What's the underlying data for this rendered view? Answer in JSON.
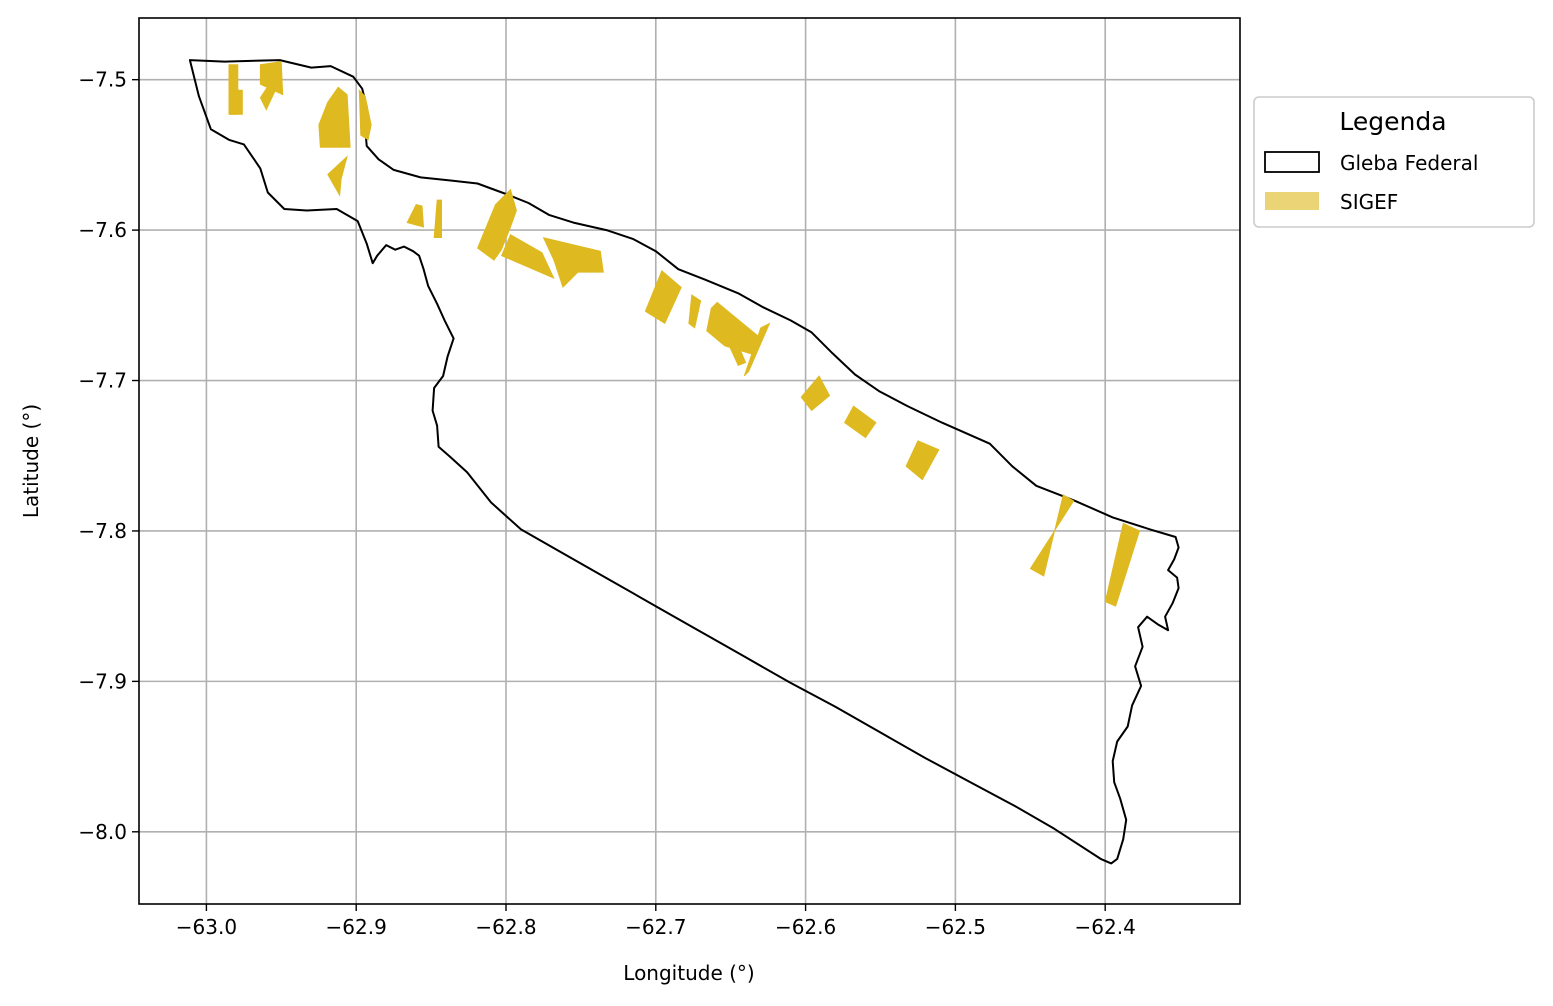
{
  "map": {
    "x_axis": {
      "label": "Longitude (°)",
      "ticks": [
        -63.0,
        -62.9,
        -62.8,
        -62.7,
        -62.6,
        -62.5,
        -62.4
      ],
      "tick_labels": [
        "−63.0",
        "−62.9",
        "−62.8",
        "−62.7",
        "−62.6",
        "−62.5",
        "−62.4"
      ],
      "range": [
        -63.045,
        -62.31
      ]
    },
    "y_axis": {
      "label": "Latitude (°)",
      "ticks": [
        -7.5,
        -7.6,
        -7.7,
        -7.8,
        -7.9,
        -8.0
      ],
      "tick_labels": [
        "−7.5",
        "−7.6",
        "−7.7",
        "−7.8",
        "−7.9",
        "−8.0"
      ],
      "range": [
        -8.048,
        -7.459
      ]
    },
    "grid": true,
    "legend": {
      "title": "Legenda",
      "placement": "outside-right-top",
      "entries": [
        {
          "label": "Gleba Federal",
          "style": "outline",
          "color": "#000000"
        },
        {
          "label": "SIGEF",
          "style": "fill",
          "color": "#dfb920"
        }
      ]
    },
    "colors": {
      "gleba_stroke": "#000000",
      "sigef_fill": "#dfb920",
      "grid": "#b0b0b0"
    },
    "gleba_federal": [
      [
        -63.011,
        -7.487
      ],
      [
        -62.988,
        -7.488
      ],
      [
        -62.951,
        -7.487
      ],
      [
        -62.93,
        -7.492
      ],
      [
        -62.917,
        -7.491
      ],
      [
        -62.902,
        -7.498
      ],
      [
        -62.896,
        -7.506
      ],
      [
        -62.893,
        -7.518
      ],
      [
        -62.894,
        -7.532
      ],
      [
        -62.893,
        -7.544
      ],
      [
        -62.885,
        -7.553
      ],
      [
        -62.875,
        -7.56
      ],
      [
        -62.857,
        -7.565
      ],
      [
        -62.837,
        -7.567
      ],
      [
        -62.819,
        -7.569
      ],
      [
        -62.8,
        -7.576
      ],
      [
        -62.785,
        -7.582
      ],
      [
        -62.771,
        -7.59
      ],
      [
        -62.755,
        -7.595
      ],
      [
        -62.733,
        -7.6
      ],
      [
        -62.715,
        -7.606
      ],
      [
        -62.7,
        -7.614
      ],
      [
        -62.685,
        -7.626
      ],
      [
        -62.667,
        -7.633
      ],
      [
        -62.645,
        -7.642
      ],
      [
        -62.629,
        -7.651
      ],
      [
        -62.61,
        -7.66
      ],
      [
        -62.596,
        -7.668
      ],
      [
        -62.582,
        -7.682
      ],
      [
        -62.567,
        -7.696
      ],
      [
        -62.551,
        -7.707
      ],
      [
        -62.532,
        -7.717
      ],
      [
        -62.509,
        -7.728
      ],
      [
        -62.477,
        -7.742
      ],
      [
        -62.462,
        -7.757
      ],
      [
        -62.446,
        -7.77
      ],
      [
        -62.42,
        -7.78
      ],
      [
        -62.395,
        -7.791
      ],
      [
        -62.37,
        -7.799
      ],
      [
        -62.353,
        -7.804
      ],
      [
        -62.351,
        -7.811
      ],
      [
        -62.354,
        -7.819
      ],
      [
        -62.358,
        -7.826
      ],
      [
        -62.352,
        -7.831
      ],
      [
        -62.351,
        -7.838
      ],
      [
        -62.355,
        -7.848
      ],
      [
        -62.36,
        -7.857
      ],
      [
        -62.358,
        -7.866
      ],
      [
        -62.365,
        -7.862
      ],
      [
        -62.372,
        -7.857
      ],
      [
        -62.378,
        -7.864
      ],
      [
        -62.375,
        -7.877
      ],
      [
        -62.38,
        -7.89
      ],
      [
        -62.376,
        -7.903
      ],
      [
        -62.382,
        -7.916
      ],
      [
        -62.385,
        -7.93
      ],
      [
        -62.392,
        -7.94
      ],
      [
        -62.395,
        -7.953
      ],
      [
        -62.394,
        -7.967
      ],
      [
        -62.39,
        -7.978
      ],
      [
        -62.386,
        -7.992
      ],
      [
        -62.388,
        -8.005
      ],
      [
        -62.392,
        -8.018
      ],
      [
        -62.396,
        -8.021
      ],
      [
        -62.403,
        -8.018
      ],
      [
        -62.434,
        -7.998
      ],
      [
        -62.46,
        -7.983
      ],
      [
        -62.49,
        -7.967
      ],
      [
        -62.52,
        -7.951
      ],
      [
        -62.55,
        -7.934
      ],
      [
        -62.58,
        -7.917
      ],
      [
        -62.61,
        -7.901
      ],
      [
        -62.64,
        -7.884
      ],
      [
        -62.67,
        -7.867
      ],
      [
        -62.7,
        -7.85
      ],
      [
        -62.73,
        -7.833
      ],
      [
        -62.76,
        -7.816
      ],
      [
        -62.79,
        -7.799
      ],
      [
        -62.81,
        -7.781
      ],
      [
        -62.826,
        -7.761
      ],
      [
        -62.837,
        -7.751
      ],
      [
        -62.845,
        -7.744
      ],
      [
        -62.846,
        -7.73
      ],
      [
        -62.849,
        -7.72
      ],
      [
        -62.848,
        -7.705
      ],
      [
        -62.842,
        -7.697
      ],
      [
        -62.839,
        -7.684
      ],
      [
        -62.835,
        -7.672
      ],
      [
        -62.841,
        -7.66
      ],
      [
        -62.846,
        -7.649
      ],
      [
        -62.852,
        -7.637
      ],
      [
        -62.855,
        -7.626
      ],
      [
        -62.858,
        -7.617
      ],
      [
        -62.862,
        -7.614
      ],
      [
        -62.868,
        -7.611
      ],
      [
        -62.874,
        -7.613
      ],
      [
        -62.88,
        -7.61
      ],
      [
        -62.886,
        -7.617
      ],
      [
        -62.889,
        -7.622
      ],
      [
        -62.893,
        -7.609
      ],
      [
        -62.899,
        -7.594
      ],
      [
        -62.913,
        -7.586
      ],
      [
        -62.933,
        -7.587
      ],
      [
        -62.948,
        -7.586
      ],
      [
        -62.959,
        -7.575
      ],
      [
        -62.964,
        -7.559
      ],
      [
        -62.975,
        -7.543
      ],
      [
        -62.985,
        -7.54
      ],
      [
        -62.997,
        -7.533
      ],
      [
        -63.005,
        -7.511
      ],
      [
        -63.011,
        -7.487
      ]
    ],
    "sigef_parcels": [
      [
        [
          -62.985,
          -7.49
        ],
        [
          -62.979,
          -7.49
        ],
        [
          -62.979,
          -7.523
        ],
        [
          -62.985,
          -7.523
        ]
      ],
      [
        [
          -62.984,
          -7.507
        ],
        [
          -62.976,
          -7.507
        ],
        [
          -62.976,
          -7.523
        ],
        [
          -62.984,
          -7.523
        ]
      ],
      [
        [
          -62.964,
          -7.49
        ],
        [
          -62.95,
          -7.488
        ],
        [
          -62.949,
          -7.51
        ],
        [
          -62.964,
          -7.503
        ]
      ],
      [
        [
          -62.958,
          -7.503
        ],
        [
          -62.952,
          -7.503
        ],
        [
          -62.96,
          -7.52
        ],
        [
          -62.964,
          -7.512
        ]
      ],
      [
        [
          -62.912,
          -7.505
        ],
        [
          -62.906,
          -7.51
        ],
        [
          -62.904,
          -7.545
        ],
        [
          -62.924,
          -7.545
        ],
        [
          -62.925,
          -7.53
        ],
        [
          -62.919,
          -7.515
        ]
      ],
      [
        [
          -62.898,
          -7.507
        ],
        [
          -62.894,
          -7.511
        ],
        [
          -62.89,
          -7.53
        ],
        [
          -62.892,
          -7.54
        ],
        [
          -62.897,
          -7.537
        ]
      ],
      [
        [
          -62.906,
          -7.551
        ],
        [
          -62.919,
          -7.563
        ],
        [
          -62.911,
          -7.577
        ],
        [
          -62.91,
          -7.566
        ]
      ],
      [
        [
          -62.86,
          -7.583
        ],
        [
          -62.856,
          -7.584
        ],
        [
          -62.855,
          -7.598
        ],
        [
          -62.866,
          -7.595
        ]
      ],
      [
        [
          -62.846,
          -7.58
        ],
        [
          -62.843,
          -7.58
        ],
        [
          -62.843,
          -7.605
        ],
        [
          -62.848,
          -7.605
        ]
      ],
      [
        [
          -62.807,
          -7.583
        ],
        [
          -62.797,
          -7.573
        ],
        [
          -62.793,
          -7.587
        ],
        [
          -62.797,
          -7.598
        ],
        [
          -62.803,
          -7.613
        ],
        [
          -62.808,
          -7.62
        ],
        [
          -62.819,
          -7.612
        ]
      ],
      [
        [
          -62.797,
          -7.603
        ],
        [
          -62.776,
          -7.615
        ],
        [
          -62.768,
          -7.632
        ],
        [
          -62.803,
          -7.617
        ]
      ],
      [
        [
          -62.775,
          -7.605
        ],
        [
          -62.737,
          -7.614
        ],
        [
          -62.735,
          -7.628
        ],
        [
          -62.752,
          -7.628
        ],
        [
          -62.762,
          -7.638
        ],
        [
          -62.768,
          -7.62
        ]
      ],
      [
        [
          -62.696,
          -7.627
        ],
        [
          -62.683,
          -7.638
        ],
        [
          -62.694,
          -7.662
        ],
        [
          -62.707,
          -7.654
        ]
      ],
      [
        [
          -62.676,
          -7.643
        ],
        [
          -62.67,
          -7.647
        ],
        [
          -62.674,
          -7.665
        ],
        [
          -62.678,
          -7.662
        ]
      ],
      [
        [
          -62.659,
          -7.648
        ],
        [
          -62.631,
          -7.671
        ],
        [
          -62.634,
          -7.683
        ],
        [
          -62.654,
          -7.677
        ],
        [
          -62.666,
          -7.667
        ],
        [
          -62.663,
          -7.652
        ]
      ],
      [
        [
          -62.652,
          -7.66
        ],
        [
          -62.64,
          -7.688
        ],
        [
          -62.645,
          -7.69
        ],
        [
          -62.656,
          -7.666
        ]
      ],
      [
        [
          -62.624,
          -7.662
        ],
        [
          -62.63,
          -7.665
        ],
        [
          -62.641,
          -7.697
        ],
        [
          -62.638,
          -7.694
        ]
      ],
      [
        [
          -62.591,
          -7.697
        ],
        [
          -62.584,
          -7.71
        ],
        [
          -62.596,
          -7.72
        ],
        [
          -62.603,
          -7.711
        ]
      ],
      [
        [
          -62.568,
          -7.717
        ],
        [
          -62.553,
          -7.728
        ],
        [
          -62.56,
          -7.738
        ],
        [
          -62.574,
          -7.728
        ]
      ],
      [
        [
          -62.525,
          -7.74
        ],
        [
          -62.511,
          -7.746
        ],
        [
          -62.522,
          -7.766
        ],
        [
          -62.533,
          -7.757
        ]
      ],
      [
        [
          -62.428,
          -7.776
        ],
        [
          -62.421,
          -7.78
        ],
        [
          -62.45,
          -7.825
        ],
        [
          -62.441,
          -7.83
        ]
      ],
      [
        [
          -62.388,
          -7.795
        ],
        [
          -62.377,
          -7.8
        ],
        [
          -62.393,
          -7.85
        ],
        [
          -62.4,
          -7.847
        ]
      ]
    ]
  }
}
